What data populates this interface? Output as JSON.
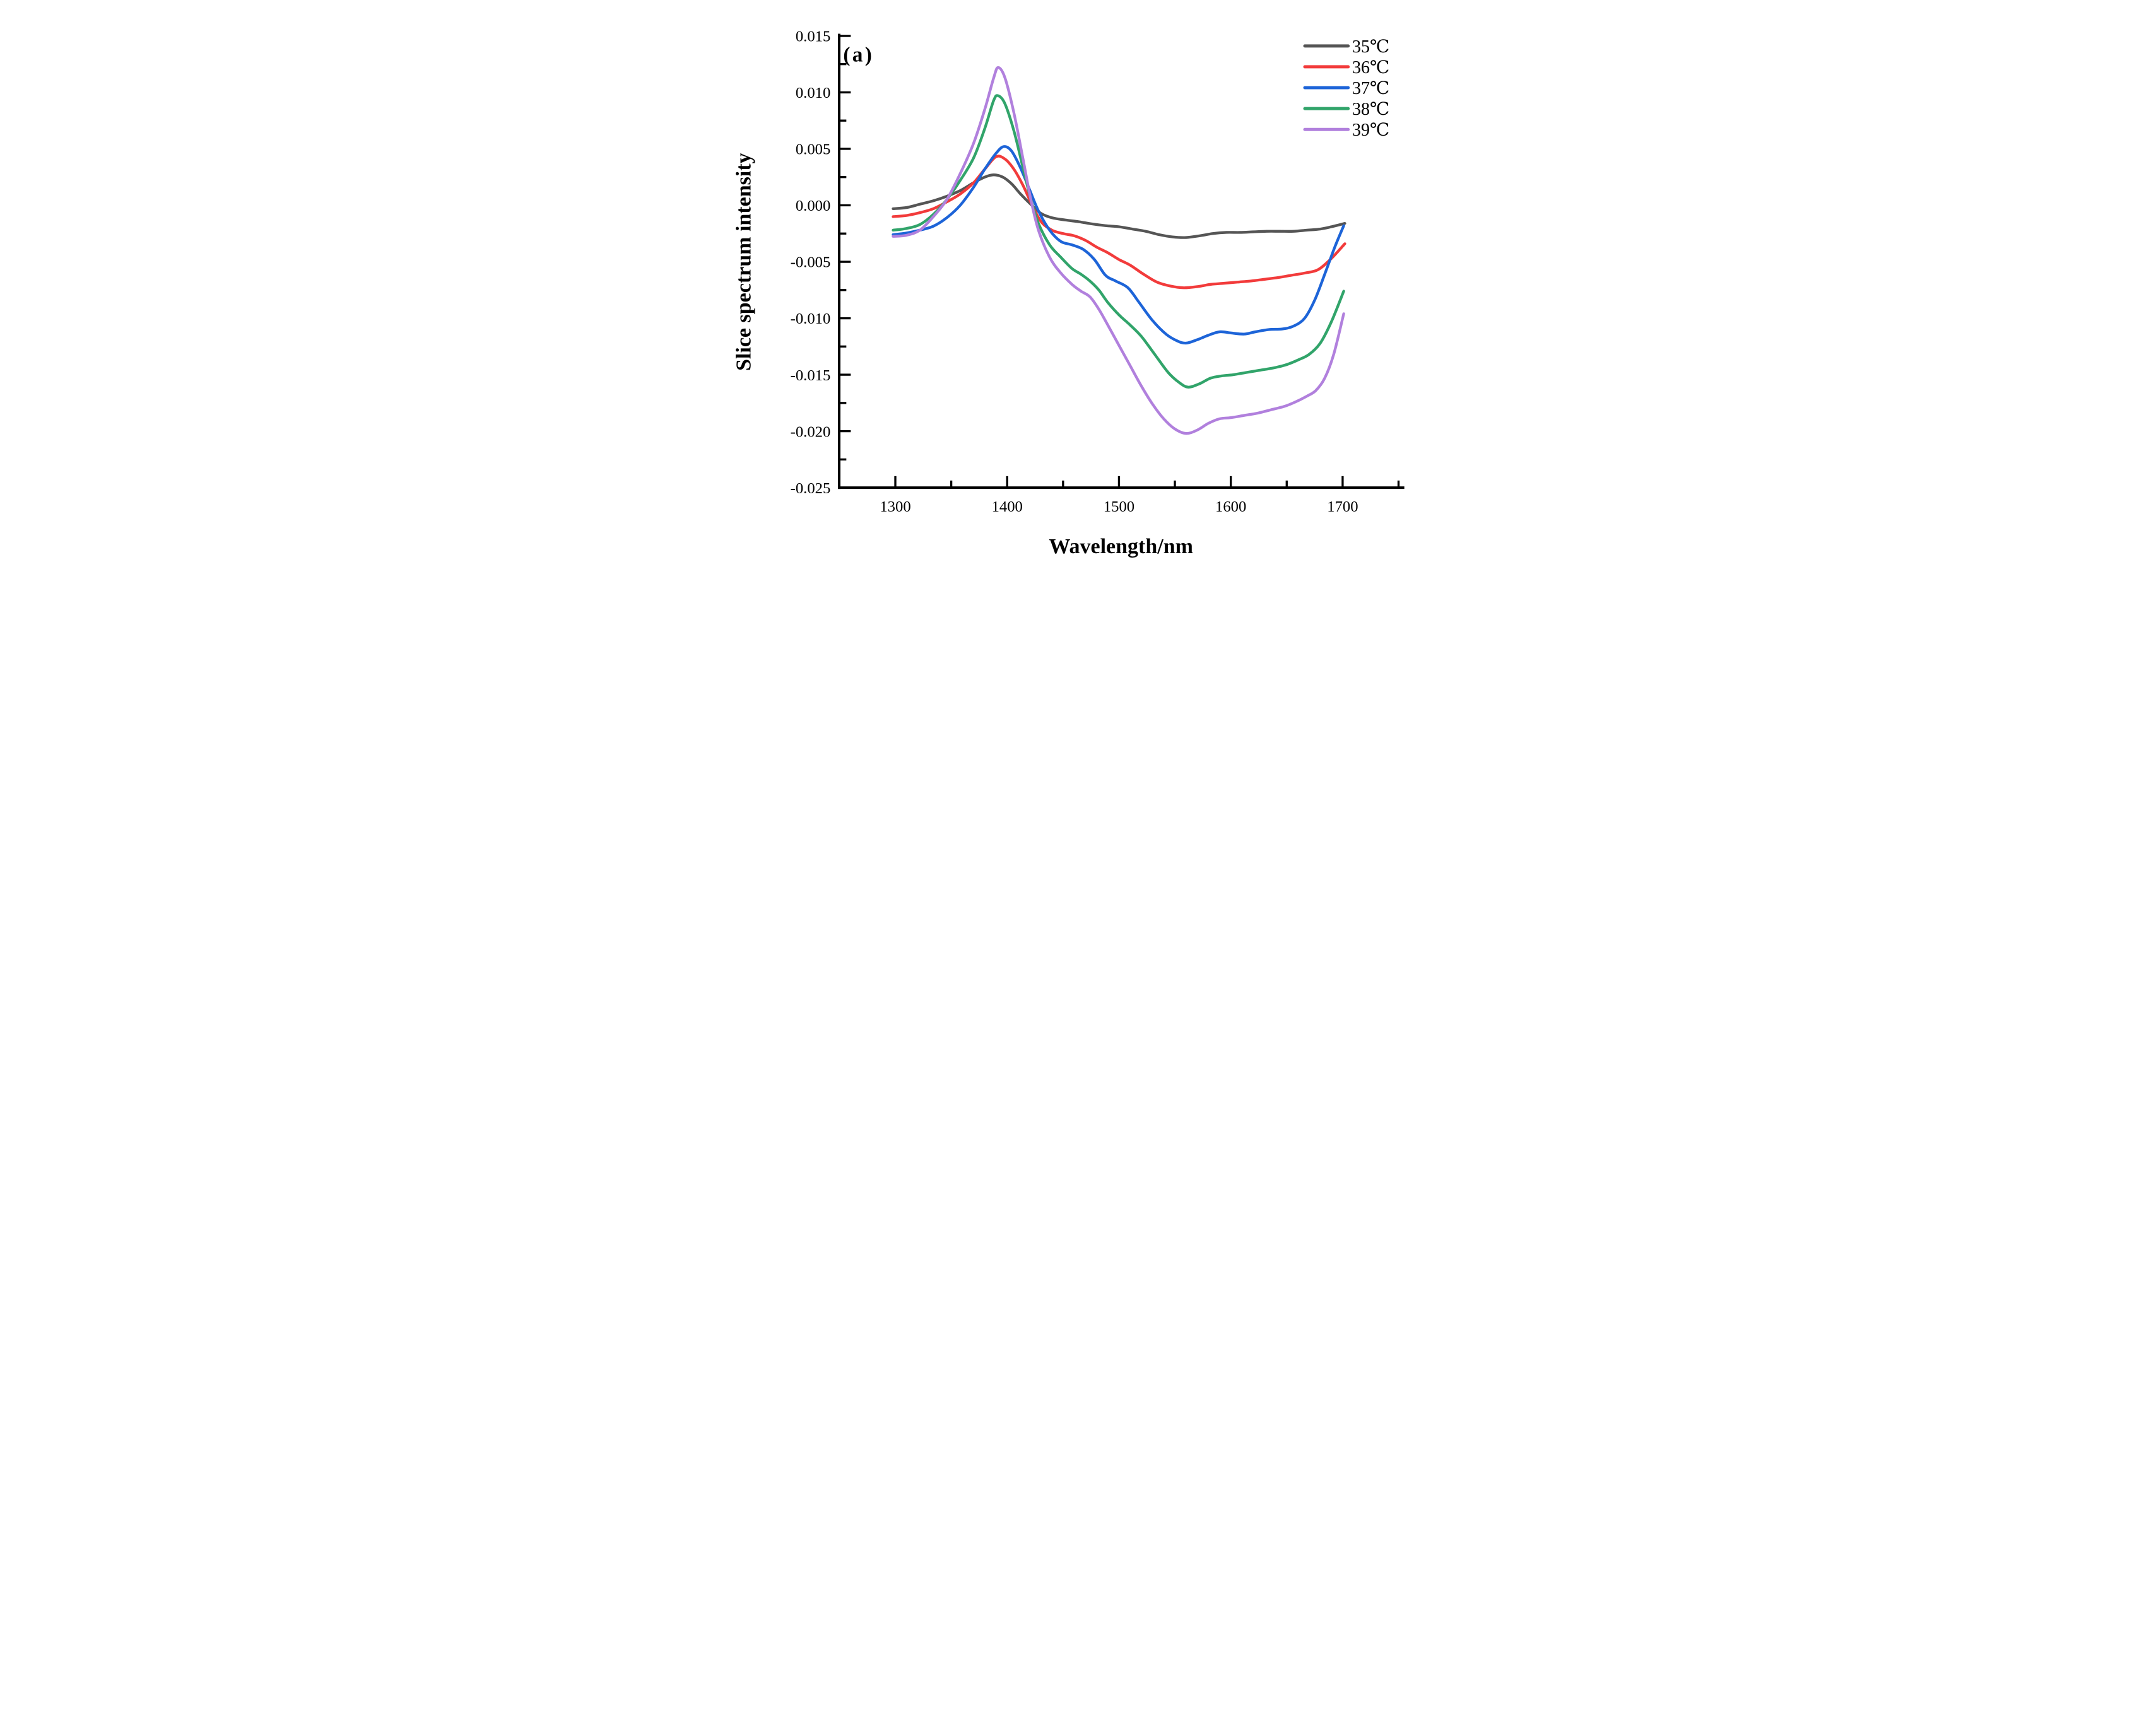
{
  "panel_label": "(a)",
  "axes": {
    "x": {
      "title": "Wavelength/nm",
      "range": [
        1250,
        1754
      ],
      "major_ticks": [
        1300,
        1400,
        1500,
        1600,
        1700
      ],
      "major_labels": [
        "1300",
        "1400",
        "1500",
        "1600",
        "1700"
      ],
      "minor_ticks": [
        1350,
        1450,
        1550,
        1650,
        1750
      ]
    },
    "y": {
      "title": "Slice spectrum intensity",
      "range": [
        -0.025,
        0.015
      ],
      "major_ticks": [
        0.015,
        0.01,
        0.005,
        0.0,
        -0.005,
        -0.01,
        -0.015,
        -0.02,
        -0.025
      ],
      "major_labels": [
        "0.015",
        "0.010",
        "0.005",
        "0.000",
        "-0.005",
        "-0.010",
        "-0.015",
        "-0.020",
        "-0.025"
      ],
      "minor_ticks": [
        0.0125,
        0.0075,
        0.0025,
        -0.0025,
        -0.0075,
        -0.0125,
        -0.0175,
        -0.0225
      ]
    }
  },
  "legend": {
    "position": "top-right",
    "entries": [
      {
        "label": "35℃",
        "color": "#555555"
      },
      {
        "label": "36℃",
        "color": "#f23b3b"
      },
      {
        "label": "37℃",
        "color": "#1d64d8"
      },
      {
        "label": "38℃",
        "color": "#31a46a"
      },
      {
        "label": "39℃",
        "color": "#b180dd"
      }
    ]
  },
  "chart_data": {
    "type": "line",
    "title": "",
    "xlabel": "Wavelength/nm",
    "ylabel": "Slice spectrum intensity",
    "xlim": [
      1250,
      1754
    ],
    "ylim": [
      -0.025,
      0.015
    ],
    "grid": false,
    "legend_position": "top-right",
    "series": [
      {
        "name": "35℃",
        "color": "#555555",
        "points": [
          [
            1298,
            -0.0003
          ],
          [
            1310,
            -0.0002
          ],
          [
            1322,
            0.0001
          ],
          [
            1334,
            0.0004
          ],
          [
            1346,
            0.0008
          ],
          [
            1358,
            0.0013
          ],
          [
            1370,
            0.002
          ],
          [
            1380,
            0.0025
          ],
          [
            1388,
            0.0027
          ],
          [
            1396,
            0.0025
          ],
          [
            1404,
            0.0019
          ],
          [
            1412,
            0.001
          ],
          [
            1421,
            0.0001
          ],
          [
            1430,
            -0.0007
          ],
          [
            1440,
            -0.0011
          ],
          [
            1452,
            -0.0013
          ],
          [
            1464,
            -0.00145
          ],
          [
            1476,
            -0.00165
          ],
          [
            1488,
            -0.0018
          ],
          [
            1500,
            -0.0019
          ],
          [
            1512,
            -0.0021
          ],
          [
            1524,
            -0.0023
          ],
          [
            1536,
            -0.0026
          ],
          [
            1548,
            -0.0028
          ],
          [
            1560,
            -0.00285
          ],
          [
            1572,
            -0.0027
          ],
          [
            1584,
            -0.0025
          ],
          [
            1596,
            -0.0024
          ],
          [
            1608,
            -0.0024
          ],
          [
            1620,
            -0.00235
          ],
          [
            1632,
            -0.0023
          ],
          [
            1644,
            -0.0023
          ],
          [
            1656,
            -0.0023
          ],
          [
            1668,
            -0.0022
          ],
          [
            1680,
            -0.0021
          ],
          [
            1690,
            -0.0019
          ],
          [
            1702,
            -0.0016
          ]
        ]
      },
      {
        "name": "36℃",
        "color": "#f23b3b",
        "points": [
          [
            1298,
            -0.001
          ],
          [
            1310,
            -0.0009
          ],
          [
            1322,
            -0.00065
          ],
          [
            1334,
            -0.0003
          ],
          [
            1346,
            0.0003
          ],
          [
            1358,
            0.001
          ],
          [
            1370,
            0.002
          ],
          [
            1380,
            0.0032
          ],
          [
            1390,
            0.0043
          ],
          [
            1398,
            0.0041
          ],
          [
            1406,
            0.0032
          ],
          [
            1414,
            0.0018
          ],
          [
            1421,
            0.0003
          ],
          [
            1430,
            -0.0014
          ],
          [
            1440,
            -0.0022
          ],
          [
            1450,
            -0.0025
          ],
          [
            1460,
            -0.0027
          ],
          [
            1470,
            -0.0031
          ],
          [
            1480,
            -0.0037
          ],
          [
            1490,
            -0.0042
          ],
          [
            1500,
            -0.0048
          ],
          [
            1510,
            -0.0053
          ],
          [
            1522,
            -0.0061
          ],
          [
            1534,
            -0.0068
          ],
          [
            1546,
            -0.00715
          ],
          [
            1558,
            -0.0073
          ],
          [
            1570,
            -0.0072
          ],
          [
            1582,
            -0.007
          ],
          [
            1594,
            -0.0069
          ],
          [
            1606,
            -0.0068
          ],
          [
            1618,
            -0.0067
          ],
          [
            1630,
            -0.00655
          ],
          [
            1642,
            -0.0064
          ],
          [
            1654,
            -0.0062
          ],
          [
            1666,
            -0.006
          ],
          [
            1678,
            -0.0057
          ],
          [
            1690,
            -0.0047
          ],
          [
            1702,
            -0.0034
          ]
        ]
      },
      {
        "name": "37℃",
        "color": "#1d64d8",
        "points": [
          [
            1298,
            -0.0026
          ],
          [
            1310,
            -0.00245
          ],
          [
            1322,
            -0.0022
          ],
          [
            1334,
            -0.00185
          ],
          [
            1346,
            -0.0011
          ],
          [
            1358,
            0.0
          ],
          [
            1370,
            0.0016
          ],
          [
            1380,
            0.0032
          ],
          [
            1390,
            0.0046
          ],
          [
            1397,
            0.0052
          ],
          [
            1404,
            0.0048
          ],
          [
            1412,
            0.0033
          ],
          [
            1420,
            0.0014
          ],
          [
            1428,
            -0.0005
          ],
          [
            1438,
            -0.0022
          ],
          [
            1448,
            -0.0032
          ],
          [
            1458,
            -0.0035
          ],
          [
            1468,
            -0.0039
          ],
          [
            1478,
            -0.0048
          ],
          [
            1488,
            -0.0062
          ],
          [
            1497,
            -0.0067
          ],
          [
            1508,
            -0.0073
          ],
          [
            1518,
            -0.0086
          ],
          [
            1530,
            -0.0102
          ],
          [
            1542,
            -0.0114
          ],
          [
            1552,
            -0.012
          ],
          [
            1560,
            -0.0122
          ],
          [
            1570,
            -0.0119
          ],
          [
            1580,
            -0.0115
          ],
          [
            1590,
            -0.0112
          ],
          [
            1600,
            -0.0113
          ],
          [
            1612,
            -0.0114
          ],
          [
            1622,
            -0.0112
          ],
          [
            1634,
            -0.011
          ],
          [
            1646,
            -0.01095
          ],
          [
            1656,
            -0.0107
          ],
          [
            1666,
            -0.01
          ],
          [
            1675,
            -0.0084
          ],
          [
            1684,
            -0.0061
          ],
          [
            1693,
            -0.0037
          ],
          [
            1701,
            -0.0018
          ]
        ]
      },
      {
        "name": "38℃",
        "color": "#31a46a",
        "points": [
          [
            1298,
            -0.0022
          ],
          [
            1310,
            -0.00205
          ],
          [
            1322,
            -0.0017
          ],
          [
            1334,
            -0.0008
          ],
          [
            1346,
            0.0005
          ],
          [
            1358,
            0.0022
          ],
          [
            1370,
            0.0042
          ],
          [
            1380,
            0.0068
          ],
          [
            1388,
            0.0093
          ],
          [
            1392,
            0.0097
          ],
          [
            1398,
            0.009
          ],
          [
            1406,
            0.0066
          ],
          [
            1414,
            0.0034
          ],
          [
            1421,
            0.0006
          ],
          [
            1428,
            -0.0016
          ],
          [
            1438,
            -0.0035
          ],
          [
            1448,
            -0.0046
          ],
          [
            1458,
            -0.0056
          ],
          [
            1466,
            -0.0061
          ],
          [
            1474,
            -0.0067
          ],
          [
            1482,
            -0.0075
          ],
          [
            1490,
            -0.0086
          ],
          [
            1500,
            -0.0097
          ],
          [
            1510,
            -0.0106
          ],
          [
            1520,
            -0.0116
          ],
          [
            1532,
            -0.0132
          ],
          [
            1544,
            -0.0148
          ],
          [
            1554,
            -0.0157
          ],
          [
            1562,
            -0.0161
          ],
          [
            1572,
            -0.0158
          ],
          [
            1582,
            -0.0153
          ],
          [
            1592,
            -0.0151
          ],
          [
            1602,
            -0.015
          ],
          [
            1614,
            -0.0148
          ],
          [
            1626,
            -0.0146
          ],
          [
            1638,
            -0.0144
          ],
          [
            1650,
            -0.0141
          ],
          [
            1660,
            -0.0137
          ],
          [
            1670,
            -0.0132
          ],
          [
            1680,
            -0.0122
          ],
          [
            1690,
            -0.0103
          ],
          [
            1701,
            -0.0076
          ]
        ]
      },
      {
        "name": "39℃",
        "color": "#b180dd",
        "points": [
          [
            1298,
            -0.00275
          ],
          [
            1310,
            -0.00265
          ],
          [
            1322,
            -0.0022
          ],
          [
            1334,
            -0.001
          ],
          [
            1346,
            0.0005
          ],
          [
            1358,
            0.0028
          ],
          [
            1370,
            0.0055
          ],
          [
            1380,
            0.0085
          ],
          [
            1388,
            0.0113
          ],
          [
            1392,
            0.0122
          ],
          [
            1398,
            0.0113
          ],
          [
            1406,
            0.0082
          ],
          [
            1414,
            0.0042
          ],
          [
            1421,
            0.0006
          ],
          [
            1428,
            -0.0022
          ],
          [
            1438,
            -0.0046
          ],
          [
            1448,
            -0.006
          ],
          [
            1458,
            -0.007
          ],
          [
            1466,
            -0.0076
          ],
          [
            1474,
            -0.0081
          ],
          [
            1482,
            -0.0092
          ],
          [
            1490,
            -0.0106
          ],
          [
            1500,
            -0.0124
          ],
          [
            1510,
            -0.0142
          ],
          [
            1520,
            -0.016
          ],
          [
            1530,
            -0.0176
          ],
          [
            1540,
            -0.0189
          ],
          [
            1550,
            -0.0198
          ],
          [
            1560,
            -0.0202
          ],
          [
            1570,
            -0.0199
          ],
          [
            1580,
            -0.0193
          ],
          [
            1590,
            -0.0189
          ],
          [
            1600,
            -0.0188
          ],
          [
            1612,
            -0.0186
          ],
          [
            1624,
            -0.0184
          ],
          [
            1636,
            -0.0181
          ],
          [
            1648,
            -0.0178
          ],
          [
            1658,
            -0.0174
          ],
          [
            1668,
            -0.0169
          ],
          [
            1676,
            -0.0164
          ],
          [
            1684,
            -0.0153
          ],
          [
            1692,
            -0.0132
          ],
          [
            1701,
            -0.0096
          ]
        ]
      }
    ]
  }
}
